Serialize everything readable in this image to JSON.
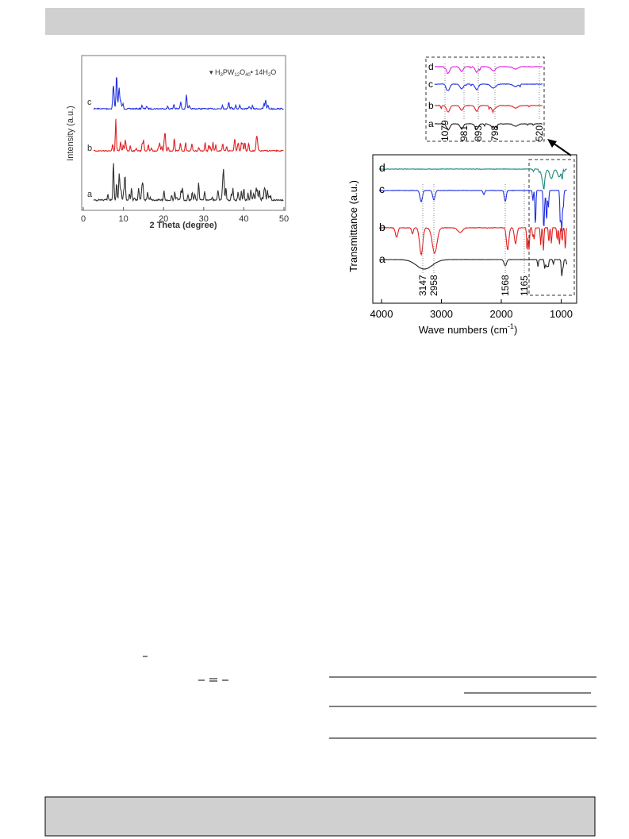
{
  "xrd_figure": {
    "legend": [
      "H",
      "3",
      "PW",
      "12",
      "O",
      "40",
      "• 14H",
      "2",
      "O"
    ],
    "y_label": "Intensity (a.u.)",
    "x_label": "2 Theta (degree)",
    "x_ticks": [
      "0",
      "10",
      "20",
      "30",
      "40",
      "50"
    ],
    "curve_labels": [
      "c",
      "b",
      "a"
    ]
  },
  "ir_figure": {
    "y_label": "Transmittance (a.u.)",
    "x_label": [
      "Wave numbers (cm",
      "-1",
      ")"
    ],
    "x_ticks": [
      "4000",
      "3000",
      "2000",
      "1000"
    ],
    "curve_labels": [
      "d",
      "c",
      "b",
      "a"
    ],
    "peak_labels": [
      "3147",
      "2958",
      "1568",
      "1165"
    ],
    "inset_curve_labels": [
      "d",
      "c",
      "b",
      "a"
    ],
    "inset_peak_labels": [
      "1079",
      "981",
      "893",
      "798",
      "520"
    ]
  }
}
